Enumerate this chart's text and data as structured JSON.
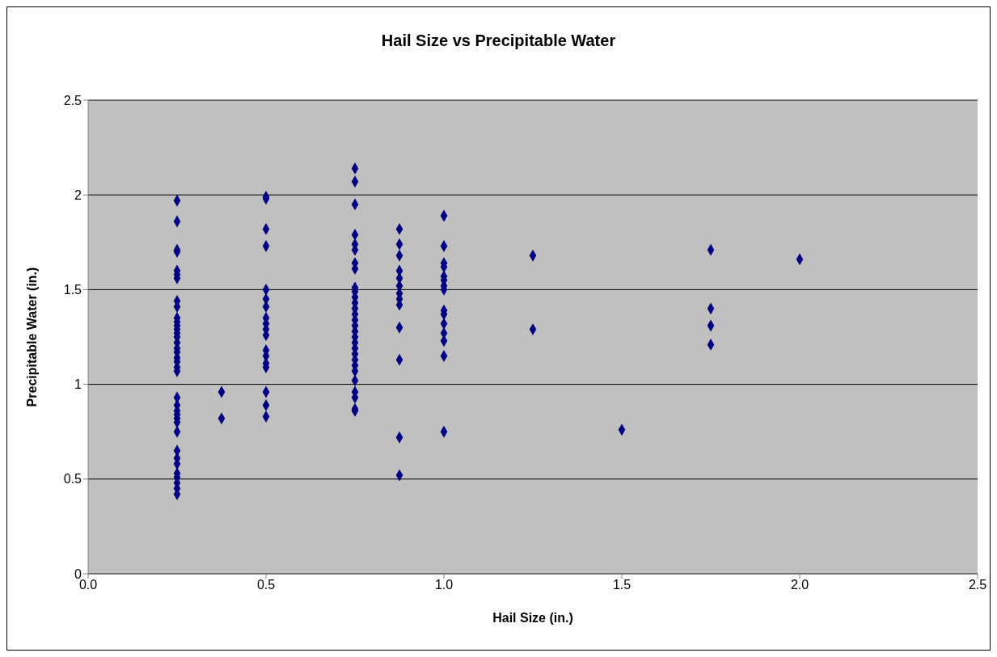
{
  "chart_data": {
    "type": "scatter",
    "title": "Hail Size vs Precipitable Water",
    "xlabel": "Hail Size (in.)",
    "ylabel": "Precipitable Water (in.)",
    "x": [
      0.25,
      0.25,
      0.25,
      0.25,
      0.25,
      0.25,
      0.25,
      0.25,
      0.25,
      0.25,
      0.25,
      0.25,
      0.25,
      0.25,
      0.25,
      0.25,
      0.25,
      0.25,
      0.25,
      0.25,
      0.25,
      0.25,
      0.25,
      0.25,
      0.25,
      0.25,
      0.25,
      0.25,
      0.25,
      0.25,
      0.25,
      0.25,
      0.25,
      0.25,
      0.25,
      0.25,
      0.25,
      0.375,
      0.375,
      0.5,
      0.5,
      0.5,
      0.5,
      0.5,
      0.5,
      0.5,
      0.5,
      0.5,
      0.5,
      0.5,
      0.5,
      0.5,
      0.5,
      0.5,
      0.5,
      0.5,
      0.5,
      0.75,
      0.75,
      0.75,
      0.75,
      0.75,
      0.75,
      0.75,
      0.75,
      0.75,
      0.75,
      0.75,
      0.75,
      0.75,
      0.75,
      0.75,
      0.75,
      0.75,
      0.75,
      0.75,
      0.75,
      0.75,
      0.75,
      0.75,
      0.75,
      0.75,
      0.75,
      0.75,
      0.75,
      0.75,
      0.875,
      0.875,
      0.875,
      0.875,
      0.875,
      0.875,
      0.875,
      0.875,
      0.875,
      0.875,
      0.875,
      0.875,
      0.875,
      1.0,
      1.0,
      1.0,
      1.0,
      1.0,
      1.0,
      1.0,
      1.0,
      1.0,
      1.0,
      1.0,
      1.0,
      1.0,
      1.0,
      1.0,
      1.25,
      1.25,
      1.5,
      1.75,
      1.75,
      1.75,
      1.75,
      2.0
    ],
    "series": [
      {
        "color": "#000080",
        "values": [
          1.97,
          1.86,
          1.71,
          1.7,
          1.6,
          1.58,
          1.56,
          1.44,
          1.41,
          1.35,
          1.33,
          1.31,
          1.29,
          1.27,
          1.25,
          1.22,
          1.19,
          1.17,
          1.14,
          1.12,
          1.09,
          1.07,
          0.93,
          0.89,
          0.86,
          0.84,
          0.82,
          0.8,
          0.75,
          0.65,
          0.61,
          0.58,
          0.53,
          0.51,
          0.48,
          0.45,
          0.42,
          0.96,
          0.82,
          1.99,
          1.98,
          1.82,
          1.73,
          1.5,
          1.45,
          1.41,
          1.35,
          1.32,
          1.29,
          1.26,
          1.18,
          1.15,
          1.11,
          1.09,
          0.96,
          0.89,
          0.83,
          2.14,
          2.07,
          1.95,
          1.79,
          1.74,
          1.71,
          1.64,
          1.61,
          1.51,
          1.49,
          1.46,
          1.43,
          1.4,
          1.37,
          1.34,
          1.31,
          1.28,
          1.25,
          1.22,
          1.19,
          1.16,
          1.13,
          1.1,
          1.07,
          1.02,
          0.96,
          0.93,
          0.87,
          0.86,
          1.82,
          1.74,
          1.68,
          1.6,
          1.56,
          1.52,
          1.48,
          1.45,
          1.42,
          1.3,
          1.13,
          0.72,
          0.52,
          1.89,
          1.73,
          1.64,
          1.62,
          1.57,
          1.55,
          1.52,
          1.5,
          1.39,
          1.37,
          1.32,
          1.27,
          1.23,
          1.15,
          0.75,
          1.68,
          1.29,
          0.76,
          1.71,
          1.4,
          1.31,
          1.21,
          1.66
        ]
      }
    ],
    "xlim": [
      0,
      2.5
    ],
    "xticks": [
      {
        "value": 0,
        "label": "0.0"
      },
      {
        "value": 0.5,
        "label": "0.5"
      },
      {
        "value": 1,
        "label": "1.0"
      },
      {
        "value": 1.5,
        "label": "1.5"
      },
      {
        "value": 2,
        "label": "2.0"
      },
      {
        "value": 2.5,
        "label": "2.5"
      }
    ],
    "ylim": [
      0,
      2.5
    ],
    "yticks": [
      0,
      0.5,
      1,
      1.5,
      2,
      2.5
    ],
    "grid": "y",
    "legend": false,
    "marker": "diamond"
  }
}
